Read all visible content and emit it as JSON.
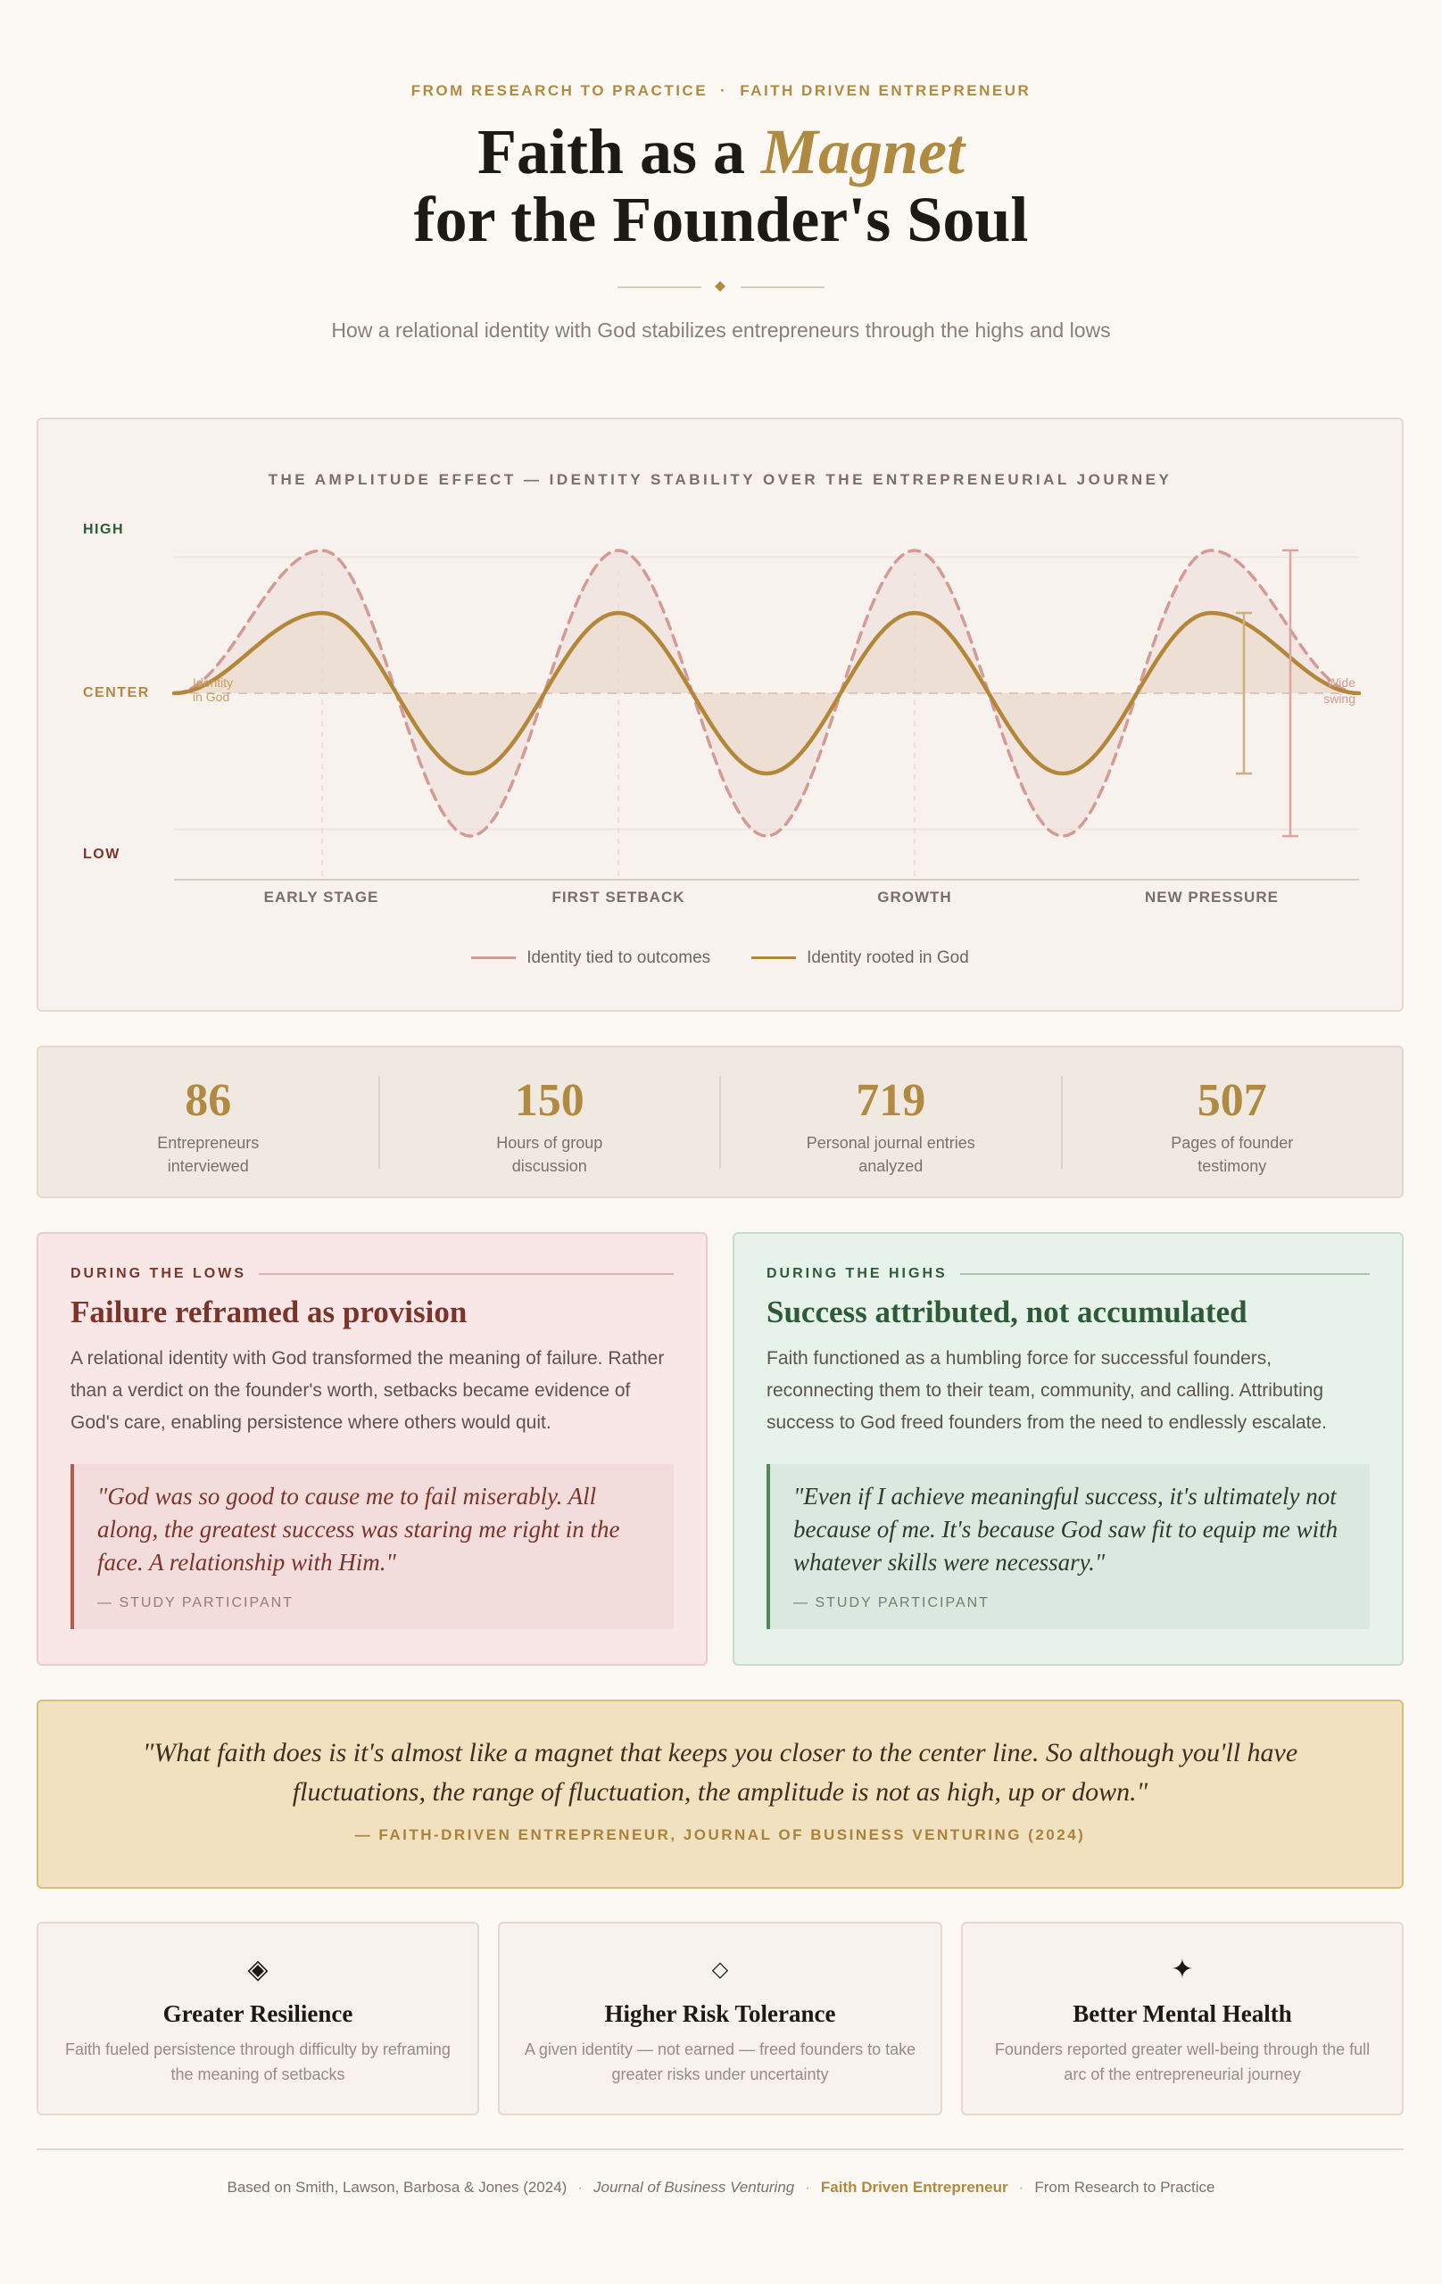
{
  "header": {
    "kicker_left": "FROM RESEARCH TO PRACTICE",
    "kicker_sep": "·",
    "kicker_right": "FAITH DRIVEN ENTREPRENEUR",
    "title_pre": "Faith as a ",
    "title_accent": "Magnet",
    "title_line2": "for the Founder's Soul",
    "subtitle": "How a relational identity with God stabilizes entrepreneurs through the highs and lows"
  },
  "chart_data": {
    "type": "line",
    "title": "THE AMPLITUDE EFFECT — IDENTITY STABILITY OVER THE ENTREPRENEURIAL JOURNEY",
    "y_labels": {
      "high": "HIGH",
      "center": "CENTER",
      "low": "LOW"
    },
    "categories": [
      "EARLY STAGE",
      "FIRST SETBACK",
      "GROWTH",
      "NEW PRESSURE"
    ],
    "x": [
      0,
      0.5,
      1,
      1.5,
      2,
      2.5,
      3,
      3.5,
      4
    ],
    "series": [
      {
        "name": "Identity tied to outcomes",
        "values": [
          0,
          1.05,
          -1.05,
          1.05,
          -1.05,
          1.05,
          -1.05,
          1.05,
          0
        ],
        "color": "#d49a94",
        "style": "dashed"
      },
      {
        "name": "Identity rooted in God",
        "values": [
          0,
          0.59,
          -0.59,
          0.59,
          -0.59,
          0.59,
          -0.59,
          0.59,
          0
        ],
        "color": "#b3873a",
        "style": "solid"
      }
    ],
    "annotations": {
      "god_label_1": "Identity",
      "god_label_2": "in God",
      "outcome_label_1": "Wide",
      "outcome_label_2": "swing"
    },
    "ylim": [
      -1.37,
      1.37
    ],
    "xlim": [
      0,
      4
    ],
    "grid": true,
    "legend": "bottom"
  },
  "stats": [
    {
      "value": "86",
      "label": "Entrepreneurs interviewed"
    },
    {
      "value": "150",
      "label": "Hours of group discussion"
    },
    {
      "value": "719",
      "label": "Personal journal entries analyzed"
    },
    {
      "value": "507",
      "label": "Pages of founder testimony"
    }
  ],
  "lows": {
    "label": "DURING THE LOWS",
    "heading": "Failure reframed as provision",
    "body": "A relational identity with God transformed the meaning of failure. Rather than a verdict on the founder's worth, setbacks became evidence of God's care, enabling persistence where others would quit.",
    "quote": "\"God was so good to cause me to fail miserably. All along, the greatest success was staring me right in the face. A relationship with Him.\"",
    "attribution": "— STUDY PARTICIPANT"
  },
  "highs": {
    "label": "DURING THE HIGHS",
    "heading": "Success attributed, not accumulated",
    "body": "Faith functioned as a humbling force for successful founders, reconnecting them to their team, community, and calling. Attributing success to God freed founders from the need to endlessly escalate.",
    "quote": "\"Even if I achieve meaningful success, it's ultimately not because of me. It's because God saw fit to equip me with whatever skills were necessary.\"",
    "attribution": "— STUDY PARTICIPANT"
  },
  "big_quote": {
    "text": "\"What faith does is it's almost like a magnet that keeps you closer to the center line. So although you'll have fluctuations, the range of fluctuation, the amplitude is not as high, up or down.\"",
    "attribution": "— FAITH-DRIVEN ENTREPRENEUR, JOURNAL OF BUSINESS VENTURING (2024)"
  },
  "features": [
    {
      "icon": "◈",
      "icon_name": "diamond-dot-icon",
      "title": "Greater Resilience",
      "desc": "Faith fueled persistence through difficulty by reframing the meaning of setbacks"
    },
    {
      "icon": "◇",
      "icon_name": "diamond-outline-icon",
      "title": "Higher Risk Tolerance",
      "desc": "A given identity — not earned — freed founders to take greater risks under uncertainty"
    },
    {
      "icon": "✦",
      "icon_name": "star-icon",
      "title": "Better Mental Health",
      "desc": "Founders reported greater well-being through the full arc of the entrepreneurial journey"
    }
  ],
  "footer": {
    "citation": "Based on Smith, Lawson, Barbosa & Jones (2024)",
    "sep": "·",
    "journal": "Journal of Business Venturing",
    "brand": "Faith Driven Entrepreneur",
    "series": "From Research to Practice"
  },
  "colors": {
    "gold": "#b08a40",
    "rose": "#d49a94",
    "green": "#2e5a3a",
    "maroon": "#7a342a"
  }
}
